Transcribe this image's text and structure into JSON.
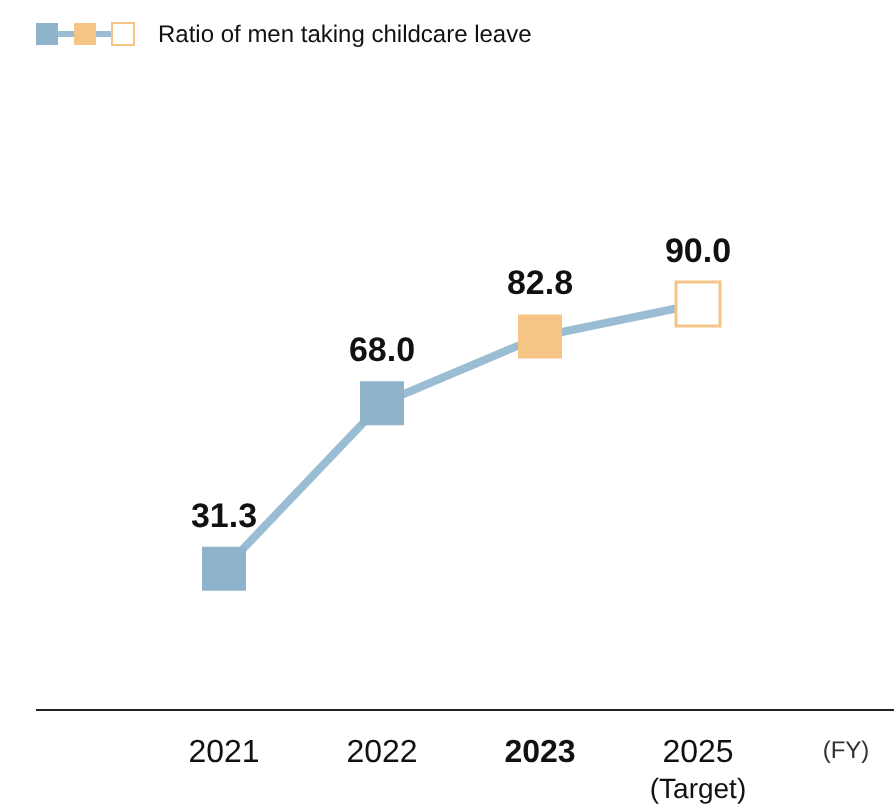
{
  "chart_data": {
    "type": "line",
    "xlabel": "(FY)",
    "categories": [
      "2021",
      "2022",
      "2023",
      "2025 (Target)"
    ],
    "series": [
      {
        "name": "Ratio of men taking childcare leave",
        "color": "#9bbdd3",
        "values": [
          31.3,
          68.0,
          82.8,
          90.0
        ],
        "colors": [
          "#8fb3cb",
          "#8fb3cb",
          "#f6c485",
          "#ffffff"
        ],
        "value_labels": [
          "31.3",
          "68.0",
          "82.8",
          "90.0"
        ]
      }
    ],
    "marker": "square",
    "legend": "top left"
  }
}
